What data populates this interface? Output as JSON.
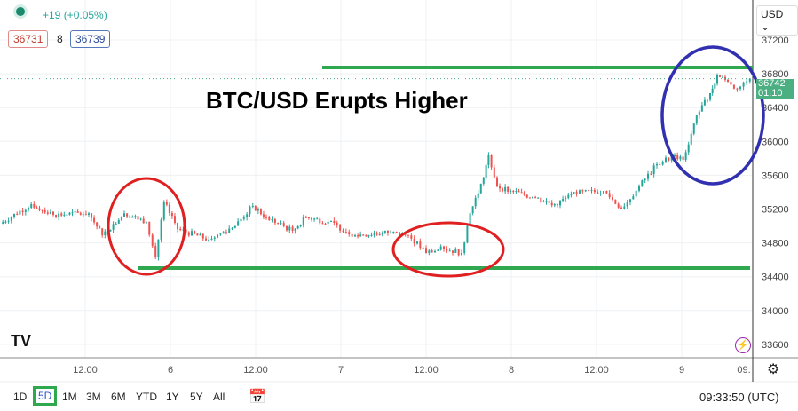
{
  "header": {
    "change": "+19 (+0.05%)",
    "bid": "36731",
    "spread": "8",
    "ask": "36739",
    "currency": "USD"
  },
  "annotation_title": "BTC/USD Erupts Higher",
  "last_price": {
    "value": "36742",
    "countdown": "01:10"
  },
  "toolbar": {
    "ranges": [
      "1D",
      "5D",
      "1M",
      "3M",
      "6M",
      "YTD",
      "1Y",
      "5Y",
      "All"
    ],
    "active": "5D",
    "clock": "09:33:50 (UTC)"
  },
  "colors": {
    "up": "#26a69a",
    "down": "#ef5350",
    "support": "#2fa84f",
    "circle_red": "#e02020",
    "circle_blue": "#3030b0",
    "last": "#4caf82"
  },
  "chart_data": {
    "type": "candlestick",
    "title": "BTC/USD Erupts Higher",
    "ylim": [
      33450,
      37350
    ],
    "yticks": [
      37200,
      36800,
      36400,
      36000,
      35600,
      35200,
      34800,
      34400,
      34000,
      33600
    ],
    "xticks": [
      {
        "t": 12,
        "label": "12:00"
      },
      {
        "t": 24,
        "label": "6"
      },
      {
        "t": 36,
        "label": "12:00"
      },
      {
        "t": 48,
        "label": "7"
      },
      {
        "t": 60,
        "label": "12:00"
      },
      {
        "t": 72,
        "label": "8"
      },
      {
        "t": 84,
        "label": "12:00"
      },
      {
        "t": 96,
        "label": "9"
      },
      {
        "t": 104.75,
        "label": "09:"
      }
    ],
    "xunit": "hours from day 5 00:00",
    "close": [
      [
        0,
        35027
      ],
      [
        4.4,
        35258
      ],
      [
        7.5,
        35132
      ],
      [
        12.5,
        35150
      ],
      [
        14.4,
        34890
      ],
      [
        17.5,
        35150
      ],
      [
        20.6,
        35050
      ],
      [
        21.9,
        34628
      ],
      [
        23.1,
        35280
      ],
      [
        25,
        34964
      ],
      [
        29.4,
        34838
      ],
      [
        33.1,
        35000
      ],
      [
        35.6,
        35237
      ],
      [
        37.5,
        35100
      ],
      [
        41.2,
        34943
      ],
      [
        43.1,
        35100
      ],
      [
        46.2,
        35050
      ],
      [
        50,
        34890
      ],
      [
        55,
        34922
      ],
      [
        57.5,
        34890
      ],
      [
        60,
        34680
      ],
      [
        62.5,
        34733
      ],
      [
        65,
        34680
      ],
      [
        66.2,
        35150
      ],
      [
        68.1,
        35570
      ],
      [
        68.8,
        35835
      ],
      [
        70,
        35467
      ],
      [
        71.9,
        35415
      ],
      [
        75,
        35342
      ],
      [
        78.1,
        35258
      ],
      [
        81.2,
        35385
      ],
      [
        85,
        35415
      ],
      [
        87.5,
        35205
      ],
      [
        90,
        35467
      ],
      [
        92.5,
        35730
      ],
      [
        95,
        35835
      ],
      [
        96.2,
        35782
      ],
      [
        98.1,
        36307
      ],
      [
        100,
        36570
      ],
      [
        101,
        36780
      ],
      [
        102.5,
        36707
      ],
      [
        103.8,
        36622
      ],
      [
        105.6,
        36742
      ]
    ],
    "resistance": 36875,
    "support": 34502
  }
}
